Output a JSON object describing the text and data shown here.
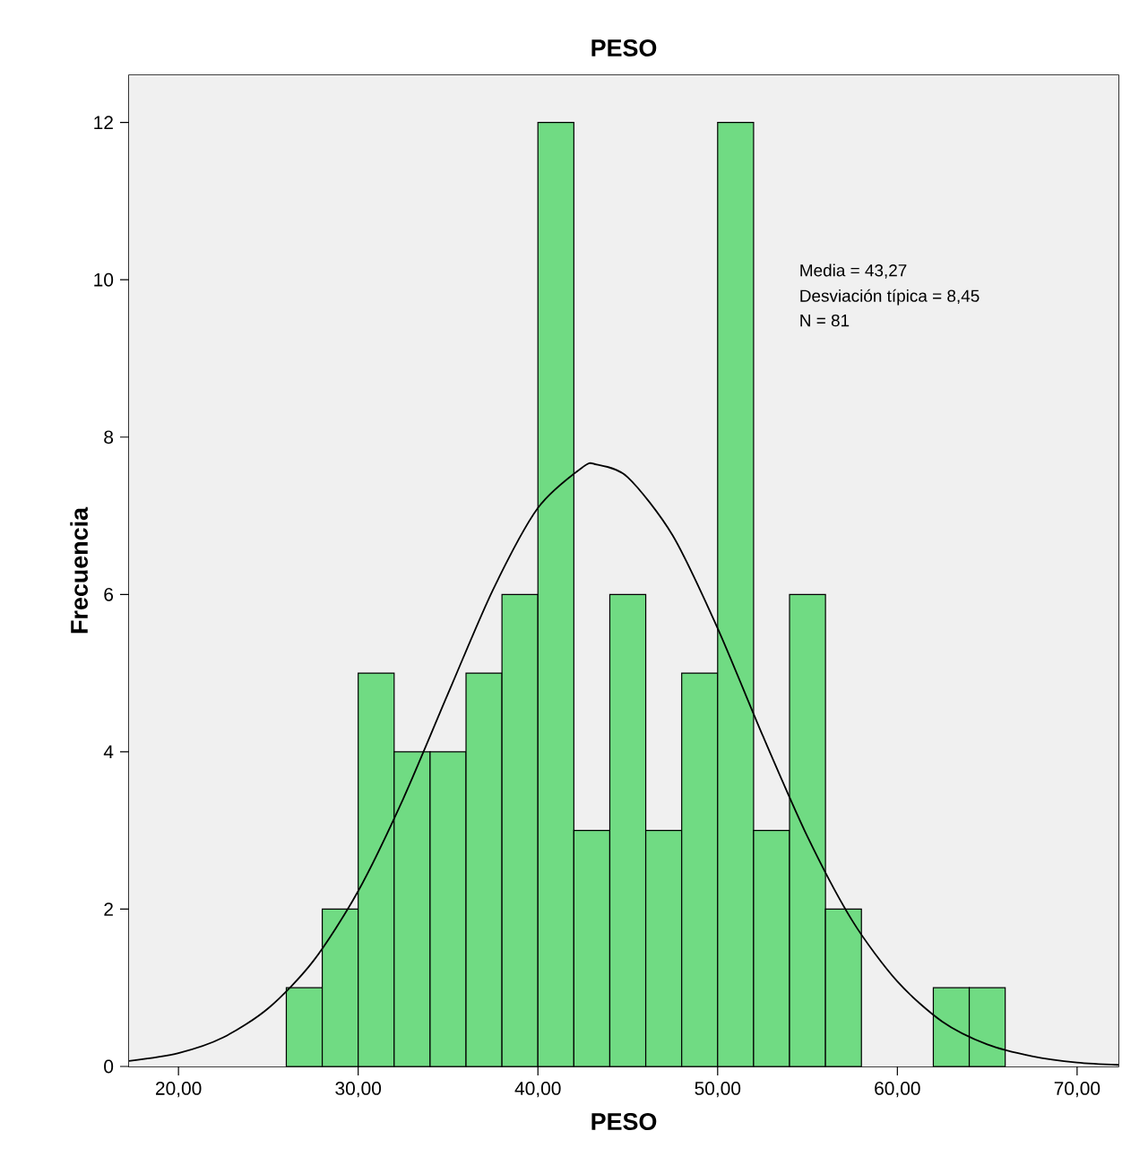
{
  "chart_data": {
    "type": "histogram",
    "title": "PESO",
    "xlabel": "PESO",
    "ylabel": "Frecuencia",
    "bins": [
      26,
      28,
      30,
      32,
      34,
      36,
      38,
      40,
      42,
      44,
      46,
      48,
      50,
      52,
      54,
      56,
      58,
      60,
      62,
      64,
      66
    ],
    "values": [
      1,
      2,
      5,
      4,
      4,
      5,
      6,
      12,
      3,
      6,
      3,
      5,
      12,
      3,
      6,
      2,
      0,
      0,
      1,
      1
    ],
    "color": "#70db83",
    "series": [
      {
        "type": "line",
        "color": "#000000",
        "x": [
          17.25,
          20,
          22.5,
          25,
          27.5,
          30,
          32.5,
          35,
          37.5,
          40,
          42.5,
          43.27,
          45,
          47.5,
          50,
          52.5,
          55,
          57.5,
          60,
          62.5,
          65,
          67.5,
          70,
          72.3
        ],
        "values": [
          0.07,
          0.17,
          0.37,
          0.74,
          1.34,
          2.23,
          3.4,
          4.74,
          6.06,
          7.1,
          7.62,
          7.65,
          7.49,
          6.75,
          5.57,
          4.21,
          2.92,
          1.85,
          1.08,
          0.57,
          0.28,
          0.13,
          0.05,
          0.02
        ]
      }
    ],
    "xlim": [
      17.25,
      72.3
    ],
    "xticks": [
      {
        "value": 20,
        "label": "20,00"
      },
      {
        "value": 30,
        "label": "30,00"
      },
      {
        "value": 40,
        "label": "40,00"
      },
      {
        "value": 50,
        "label": "50,00"
      },
      {
        "value": 60,
        "label": "60,00"
      },
      {
        "value": 70,
        "label": "70,00"
      }
    ],
    "ylim": [
      0,
      12.6
    ],
    "yticks": [
      0,
      2,
      4,
      6,
      8,
      10,
      12
    ],
    "annotations": [
      "Media = 43,27",
      "Desviación típica = 8,45",
      "N = 81"
    ]
  }
}
